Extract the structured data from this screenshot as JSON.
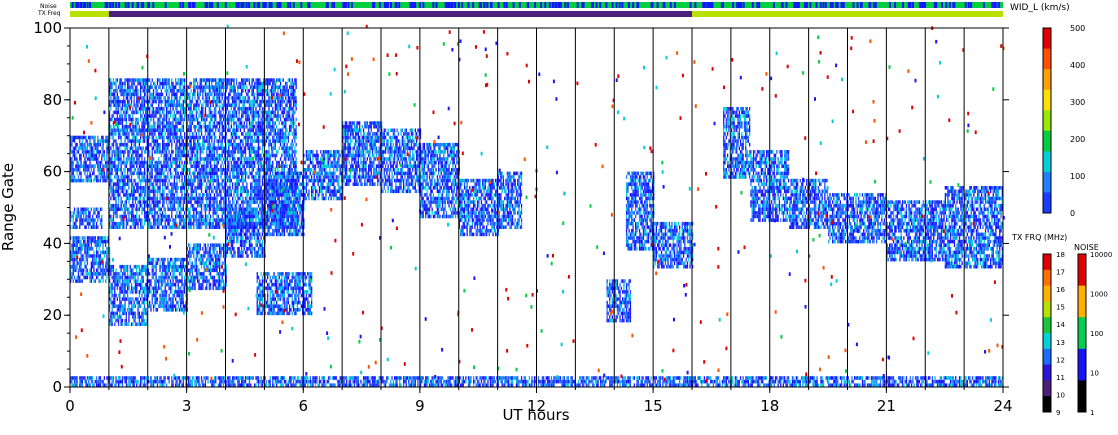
{
  "top_bars": {
    "noise_label": "Noise",
    "txfreq_label": "TX Freq"
  },
  "colorbar_width": {
    "title": "WID_L (km/s)",
    "ticks": [
      "0",
      "100",
      "200",
      "300",
      "400",
      "500"
    ],
    "colors": [
      "#1a3cff",
      "#1f7fff",
      "#00cfd9",
      "#00d040",
      "#9be800",
      "#ffe000",
      "#ffa000",
      "#ff5000",
      "#e00000"
    ]
  },
  "colorbar_freq": {
    "title": "TX FRQ (MHz)",
    "ticks": [
      "9",
      "10",
      "11",
      "12",
      "13",
      "14",
      "15",
      "16",
      "17",
      "18"
    ],
    "colors": [
      "#000000",
      "#4b1f7a",
      "#2e14d8",
      "#1c6cff",
      "#00d2e0",
      "#18c83c",
      "#b8e000",
      "#ffb000",
      "#ff7000",
      "#e00000"
    ]
  },
  "colorbar_noise": {
    "title": "NOISE",
    "ticks": [
      "1",
      "10",
      "100",
      "1000",
      "10000"
    ],
    "colors": [
      "#000000",
      "#1414ff",
      "#00d050",
      "#ffb000",
      "#e00000"
    ]
  },
  "chart_data": {
    "type": "heatmap",
    "xlabel": "UT hours",
    "ylabel": "Range Gate",
    "xlim": [
      0,
      24
    ],
    "ylim": [
      0,
      100
    ],
    "xticks": [
      0,
      3,
      6,
      9,
      12,
      15,
      18,
      21,
      24
    ],
    "yticks": [
      0,
      20,
      40,
      60,
      80,
      100
    ],
    "vertical_lines_ut": [
      1,
      2,
      3,
      4,
      5,
      6,
      7,
      8,
      9,
      10,
      11,
      12,
      13,
      14,
      15,
      16,
      17,
      18,
      19,
      20,
      21,
      22,
      23
    ],
    "echo_bands": [
      {
        "t": [
          0,
          1.0
        ],
        "gate": [
          29,
          42
        ]
      },
      {
        "t": [
          0,
          1.0
        ],
        "gate": [
          57,
          70
        ]
      },
      {
        "t": [
          0,
          0.8
        ],
        "gate": [
          44,
          50
        ]
      },
      {
        "t": [
          1.0,
          2.0
        ],
        "gate": [
          17,
          34
        ]
      },
      {
        "t": [
          2.0,
          3.0
        ],
        "gate": [
          21,
          36
        ]
      },
      {
        "t": [
          3.0,
          4.0
        ],
        "gate": [
          27,
          40
        ]
      },
      {
        "t": [
          4.0,
          5.0
        ],
        "gate": [
          36,
          50
        ]
      },
      {
        "t": [
          5.0,
          6.0
        ],
        "gate": [
          42,
          60
        ]
      },
      {
        "t": [
          6.0,
          7.0
        ],
        "gate": [
          52,
          66
        ]
      },
      {
        "t": [
          7.0,
          8.0
        ],
        "gate": [
          56,
          74
        ]
      },
      {
        "t": [
          8.0,
          9.0
        ],
        "gate": [
          54,
          72
        ]
      },
      {
        "t": [
          9.0,
          10.0
        ],
        "gate": [
          47,
          68
        ]
      },
      {
        "t": [
          10.0,
          11.0
        ],
        "gate": [
          42,
          58
        ]
      },
      {
        "t": [
          11.0,
          11.6
        ],
        "gate": [
          44,
          60
        ]
      },
      {
        "t": [
          14.3,
          15.0
        ],
        "gate": [
          38,
          60
        ]
      },
      {
        "t": [
          15.0,
          16.0
        ],
        "gate": [
          33,
          46
        ]
      },
      {
        "t": [
          16.8,
          17.5
        ],
        "gate": [
          58,
          78
        ]
      },
      {
        "t": [
          17.5,
          18.5
        ],
        "gate": [
          46,
          66
        ]
      },
      {
        "t": [
          18.5,
          19.5
        ],
        "gate": [
          44,
          58
        ]
      },
      {
        "t": [
          19.5,
          21.0
        ],
        "gate": [
          40,
          54
        ]
      },
      {
        "t": [
          21.0,
          22.5
        ],
        "gate": [
          35,
          52
        ]
      },
      {
        "t": [
          22.5,
          24.0
        ],
        "gate": [
          33,
          56
        ]
      },
      {
        "t": [
          1.0,
          5.8
        ],
        "gate": [
          44,
          86
        ]
      },
      {
        "t": [
          4.8,
          6.2
        ],
        "gate": [
          20,
          32
        ]
      },
      {
        "t": [
          13.8,
          14.4
        ],
        "gate": [
          18,
          30
        ]
      },
      {
        "t": [
          0,
          24
        ],
        "gate": [
          0,
          3
        ]
      }
    ],
    "tx_freq_bar": [
      {
        "t": [
          0,
          1.0
        ],
        "mhz": 15
      },
      {
        "t": [
          1.0,
          16.0
        ],
        "mhz": 10
      },
      {
        "t": [
          16.0,
          24.0
        ],
        "mhz": 15
      }
    ],
    "noise_bar_mhz_class": "mostly 100 (green) with intermittent 10 (blue)"
  }
}
